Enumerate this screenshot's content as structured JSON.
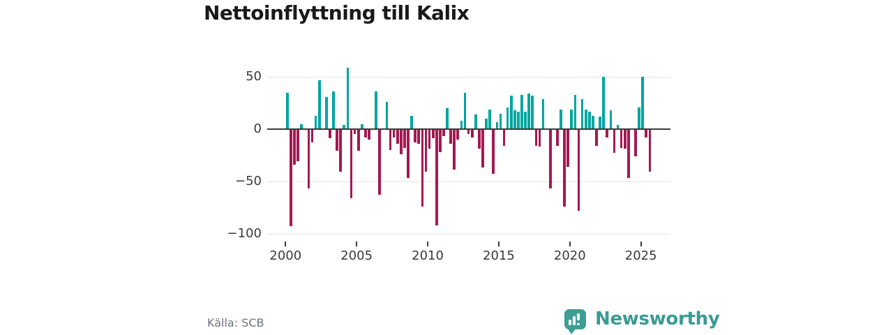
{
  "title": "Nettoinflyttning till Kalix",
  "source": "Källa: SCB",
  "branding": {
    "text": "Newsworthy",
    "icon": "newsworthy-bars-icon",
    "text_color": "#3a9a93",
    "bubble_color": "#3e9e96"
  },
  "colors": {
    "title": "#1a1a1a",
    "axis_text": "#3a3a3a",
    "gridline": "#e4e4e4",
    "zero_line": "#3b3b3b",
    "source_text": "#6b7280",
    "background": "#ffffff"
  },
  "chart_data": {
    "type": "bar",
    "title": "Nettoinflyttning till Kalix",
    "xlabel": "",
    "ylabel": "",
    "frequency": "quarterly",
    "x_start": "2000 Q1",
    "x_end": "2025 Q3",
    "values": [
      35,
      -92,
      -33,
      -30,
      5,
      0,
      -56,
      -12,
      13,
      47,
      0,
      31,
      -8,
      36,
      -20,
      -40,
      4,
      59,
      -65,
      -4,
      -20,
      5,
      -7,
      -9,
      0,
      36,
      -62,
      0,
      26,
      -19,
      -7,
      -13,
      -23,
      -17,
      -46,
      13,
      -12,
      -13,
      -73,
      -40,
      -18,
      -8,
      -91,
      -21,
      -6,
      20,
      -13,
      -38,
      -9,
      8,
      35,
      -4,
      -7,
      14,
      -18,
      -36,
      10,
      19,
      -42,
      7,
      15,
      -15,
      21,
      32,
      18,
      17,
      33,
      17,
      34,
      32,
      -15,
      -16,
      29,
      0,
      -56,
      0,
      -15,
      19,
      -73,
      -35,
      19,
      33,
      -77,
      29,
      19,
      17,
      13,
      -15,
      12,
      50,
      -7,
      18,
      -22,
      4,
      -17,
      -18,
      -46,
      0,
      -25,
      21,
      50,
      -7,
      -40
    ],
    "positive_color": "#00a5a0",
    "negative_color": "#a31952",
    "yticks": {
      "values": [
        50,
        0,
        -50,
        -100
      ],
      "labels": [
        "50",
        "0",
        "−50",
        "−100"
      ]
    },
    "xticks": {
      "years": [
        2000,
        2005,
        2010,
        2015,
        2020,
        2025
      ],
      "labels": [
        "2000",
        "2005",
        "2010",
        "2015",
        "2020",
        "2025"
      ]
    },
    "ylim": [
      -100,
      60
    ],
    "grid": "horizontal",
    "legend": "none"
  }
}
